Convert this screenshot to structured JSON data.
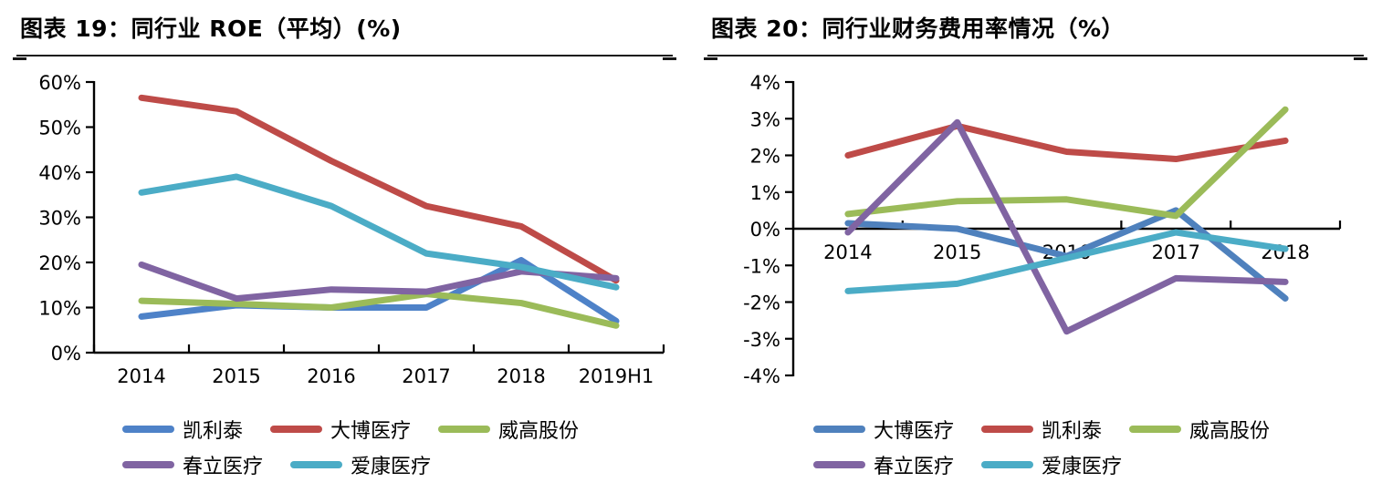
{
  "panels": [
    {
      "header": {
        "title": "图表 19：同行业 ROE（平均）(%)"
      },
      "legend_rows": [
        [
          "凯利泰",
          "大博医疗",
          "威高股份"
        ],
        [
          "春立医疗",
          "爱康医疗"
        ]
      ]
    },
    {
      "header": {
        "title": "图表 20：同行业财务费用率情况（%）"
      },
      "legend_rows": [
        [
          "大博医疗",
          "凯利泰",
          "威高股份"
        ],
        [
          "春立医疗",
          "爱康医疗"
        ]
      ]
    }
  ],
  "chart_data": [
    {
      "type": "line",
      "title": "同行业 ROE（平均）(%)",
      "categories": [
        "2014",
        "2015",
        "2016",
        "2017",
        "2018",
        "2019H1"
      ],
      "series": [
        {
          "name": "凯利泰",
          "color": "#4E82C8",
          "values": [
            8,
            10.5,
            10,
            10,
            20.5,
            7
          ]
        },
        {
          "name": "大博医疗",
          "color": "#BE4B48",
          "values": [
            56.5,
            53.5,
            42.5,
            32.5,
            28,
            16
          ]
        },
        {
          "name": "威高股份",
          "color": "#9BBB59",
          "values": [
            11.5,
            10.8,
            10,
            13,
            11,
            6
          ]
        },
        {
          "name": "春立医疗",
          "color": "#8064A2",
          "values": [
            19.5,
            12,
            14,
            13.5,
            18,
            16.5
          ]
        },
        {
          "name": "爱康医疗",
          "color": "#4BACC6",
          "values": [
            35.5,
            39,
            32.5,
            22,
            19,
            14.5
          ]
        }
      ],
      "ylim": [
        0,
        60
      ],
      "ytick_step": 10,
      "y_format": "percent",
      "grid": false,
      "legend_position": "bottom",
      "axis_color": "#000000"
    },
    {
      "type": "line",
      "title": "同行业财务费用率情况（%）",
      "categories": [
        "2014",
        "2015",
        "2016",
        "2017",
        "2018"
      ],
      "series": [
        {
          "name": "大博医疗",
          "color": "#4F81BD",
          "values": [
            0.15,
            0,
            -0.75,
            0.5,
            -1.9
          ]
        },
        {
          "name": "凯利泰",
          "color": "#BE4B48",
          "values": [
            2,
            2.8,
            2.1,
            1.9,
            2.4
          ]
        },
        {
          "name": "威高股份",
          "color": "#9BBB59",
          "values": [
            0.4,
            0.75,
            0.8,
            0.35,
            3.25
          ]
        },
        {
          "name": "春立医疗",
          "color": "#8064A2",
          "values": [
            -0.1,
            2.9,
            -2.8,
            -1.35,
            -1.45
          ]
        },
        {
          "name": "爱康医疗",
          "color": "#4BACC6",
          "values": [
            -1.7,
            -1.5,
            -0.8,
            -0.1,
            -0.55
          ]
        }
      ],
      "ylim": [
        -4,
        4
      ],
      "ytick_step": 1,
      "y_format": "percent",
      "grid": false,
      "legend_position": "bottom",
      "axis_color": "#000000",
      "x_axis_at_zero": true
    }
  ]
}
